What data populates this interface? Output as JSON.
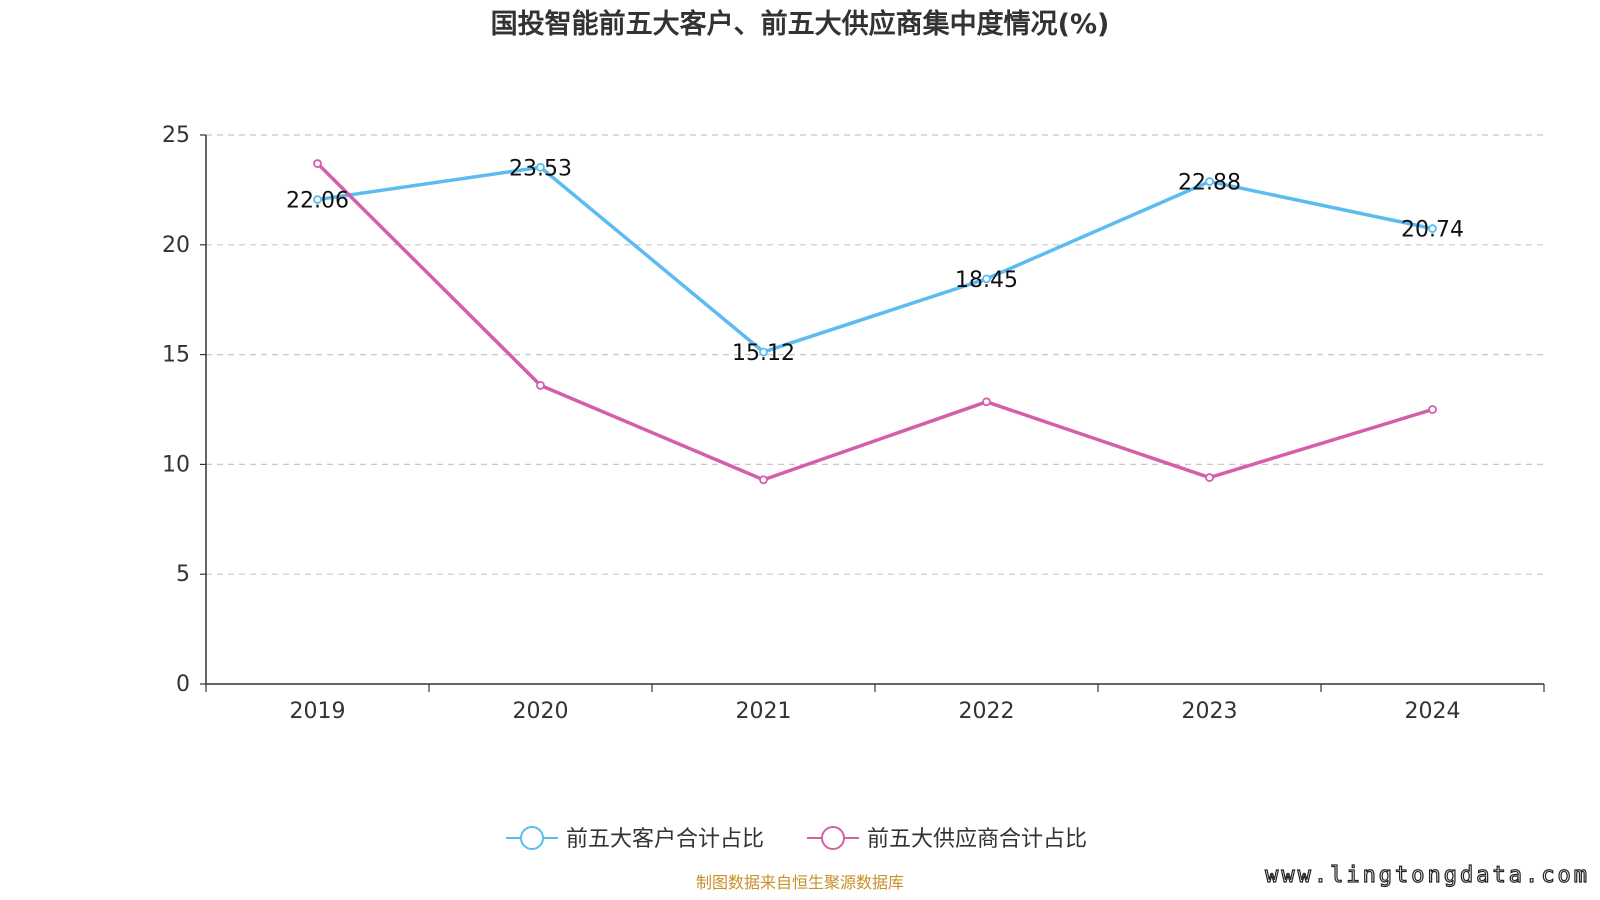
{
  "title": "国投智能前五大客户、前五大供应商集中度情况(%)",
  "source": "制图数据来自恒生聚源数据库",
  "watermark": "www.lingtongdata.com",
  "chart_data": {
    "type": "line",
    "title": "国投智能前五大客户、前五大供应商集中度情况(%)",
    "categories": [
      "2019",
      "2020",
      "2021",
      "2022",
      "2023",
      "2024"
    ],
    "ylim": [
      0,
      25
    ],
    "yticks": [
      0,
      5,
      10,
      15,
      20,
      25
    ],
    "grid": true,
    "legend_position": "bottom-center",
    "series": [
      {
        "name": "前五大客户合计占比",
        "color": "#5bbcf0",
        "values": [
          22.06,
          23.53,
          15.12,
          18.45,
          22.88,
          20.74
        ],
        "labels": [
          "22.06",
          "23.53",
          "15.12",
          "18.45",
          "22.88",
          "20.74"
        ]
      },
      {
        "name": "前五大供应商合计占比",
        "color": "#d45fa8",
        "values": [
          23.7,
          13.6,
          9.3,
          12.85,
          9.4,
          12.5
        ],
        "labels": [
          "",
          "",
          "",
          "",
          "",
          ""
        ]
      }
    ]
  }
}
